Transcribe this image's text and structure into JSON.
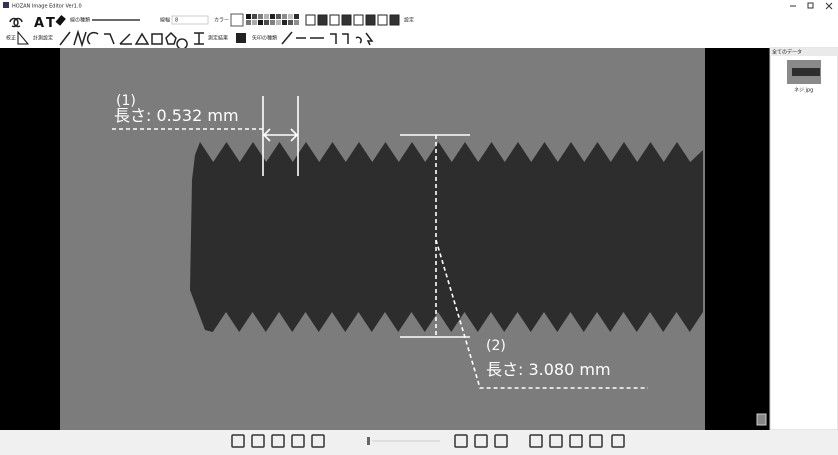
{
  "window": {
    "title": "HOZAN Image Editor Ver1.0"
  },
  "toolbar": {
    "line_type": "線の種類",
    "line_width": "線幅",
    "line_width_value": "8",
    "color": "カラー",
    "settings": "設定",
    "calibrate": "校正",
    "measure_settings": "計測設定",
    "results": "測定結果",
    "arrow_type": "矢印の種類"
  },
  "panel": {
    "title": "全てのデータ",
    "thumbnail_label": "ネジ.jpg"
  },
  "annotations": [
    {
      "index": "(1)",
      "text": "長さ: 0.532 mm"
    },
    {
      "index": "(2)",
      "text": "長さ: 3.080 mm"
    }
  ]
}
